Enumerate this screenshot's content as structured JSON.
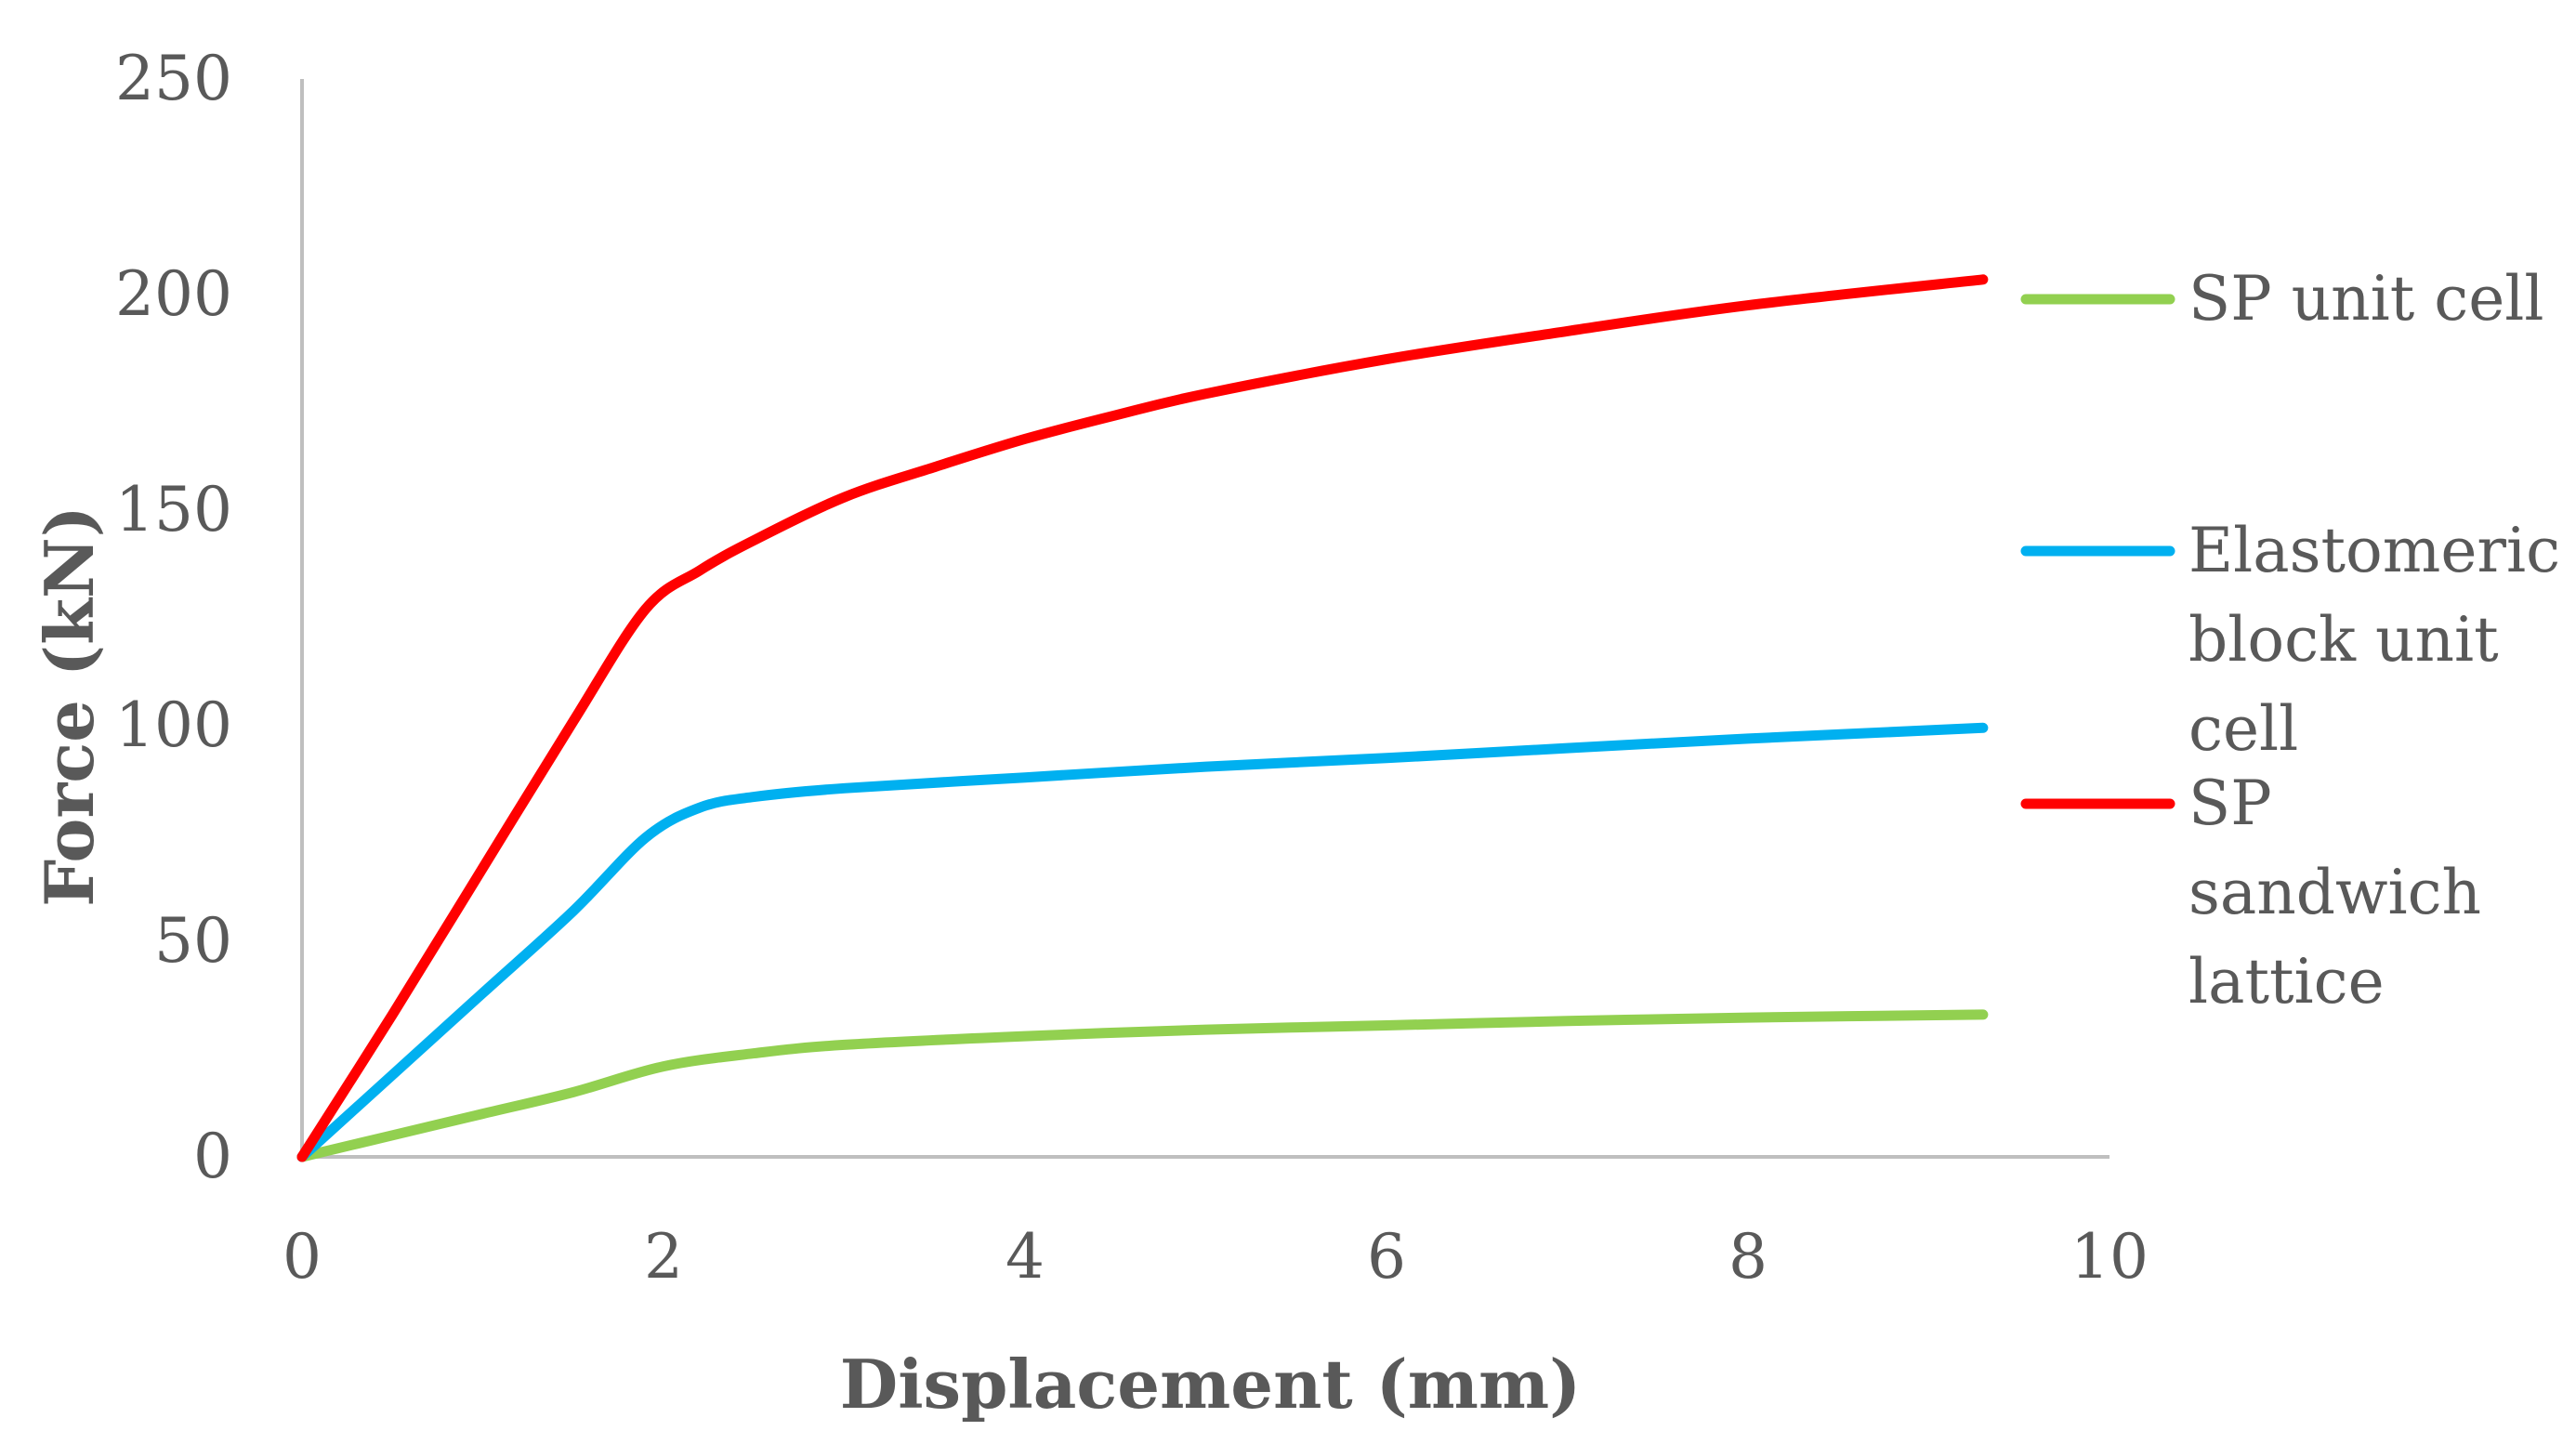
{
  "chart_data": {
    "type": "line",
    "xlabel": "Displacement (mm)",
    "ylabel": "Force (kN)",
    "xlim": [
      0,
      10
    ],
    "ylim": [
      0,
      250
    ],
    "xticks": [
      "0",
      "2",
      "4",
      "6",
      "8",
      "10"
    ],
    "yticks": [
      "0",
      "50",
      "100",
      "150",
      "200",
      "250"
    ],
    "grid": false,
    "legend": "right",
    "series": [
      {
        "name": "SP unit cell",
        "color": "#92D050",
        "points": [
          [
            0,
            0
          ],
          [
            0.5,
            5
          ],
          [
            1,
            10
          ],
          [
            1.5,
            15
          ],
          [
            2,
            21
          ],
          [
            2.5,
            24
          ],
          [
            3,
            26
          ],
          [
            4,
            28
          ],
          [
            5,
            29.5
          ],
          [
            6,
            30.5
          ],
          [
            7,
            31.5
          ],
          [
            8,
            32.3
          ],
          [
            9.3,
            33
          ]
        ]
      },
      {
        "name": "Elastomeric block unit cell",
        "legend_lines": [
          "Elastomeric",
          "block unit",
          "cell"
        ],
        "color": "#00B0F0",
        "points": [
          [
            0,
            0
          ],
          [
            0.5,
            19
          ],
          [
            1,
            38
          ],
          [
            1.5,
            57
          ],
          [
            1.9,
            74
          ],
          [
            2.2,
            81
          ],
          [
            2.5,
            83.5
          ],
          [
            3,
            85.5
          ],
          [
            4,
            88
          ],
          [
            5,
            90.5
          ],
          [
            6,
            92.5
          ],
          [
            7,
            94.8
          ],
          [
            8,
            97
          ],
          [
            9.3,
            99.5
          ]
        ]
      },
      {
        "name": "SP sandwich lattice",
        "legend_lines": [
          "SP",
          "sandwich",
          "lattice"
        ],
        "color": "#FF0000",
        "points": [
          [
            0,
            0
          ],
          [
            0.5,
            33
          ],
          [
            1,
            67
          ],
          [
            1.5,
            101
          ],
          [
            1.9,
            127
          ],
          [
            2.2,
            136
          ],
          [
            2.5,
            143
          ],
          [
            3,
            153
          ],
          [
            3.5,
            160
          ],
          [
            4,
            166.5
          ],
          [
            4.5,
            172
          ],
          [
            5,
            177
          ],
          [
            6,
            185
          ],
          [
            7,
            191.5
          ],
          [
            8,
            197.5
          ],
          [
            9.3,
            203.5
          ]
        ]
      }
    ]
  }
}
